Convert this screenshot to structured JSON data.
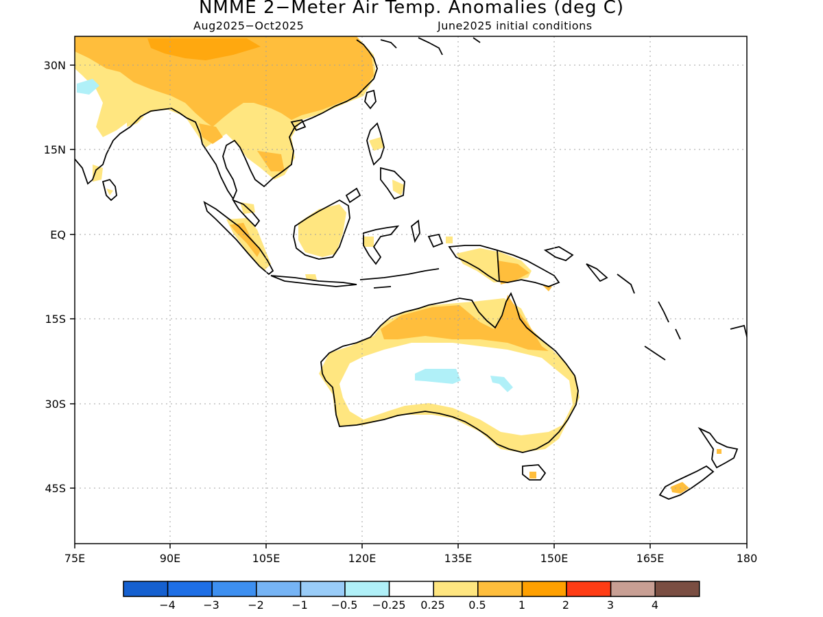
{
  "header": {
    "title": "NMME 2−Meter Air Temp. Anomalies (deg C)",
    "period": "Aug2025−Oct2025",
    "initial_conditions": "June2025 initial conditions"
  },
  "map": {
    "lon_range": [
      75,
      180
    ],
    "lat_range": [
      -52,
      34
    ],
    "lon_ticks": [
      {
        "value": 75,
        "label": "75E"
      },
      {
        "value": 90,
        "label": "90E"
      },
      {
        "value": 105,
        "label": "105E"
      },
      {
        "value": 120,
        "label": "120E"
      },
      {
        "value": 135,
        "label": "135E"
      },
      {
        "value": 150,
        "label": "150E"
      },
      {
        "value": 165,
        "label": "165E"
      },
      {
        "value": 180,
        "label": "180"
      }
    ],
    "lat_ticks": [
      {
        "value": 30,
        "label": "30N"
      },
      {
        "value": 15,
        "label": "15N"
      },
      {
        "value": 0,
        "label": "EQ"
      },
      {
        "value": -15,
        "label": "15S"
      },
      {
        "value": -30,
        "label": "30S"
      },
      {
        "value": -45,
        "label": "45S"
      }
    ],
    "grid": "dotted",
    "ocean_color": "#ffffff",
    "coastline_color": "#000000"
  },
  "legend": {
    "colors": [
      "#1560d0",
      "#1e6fe6",
      "#3d8ff0",
      "#76b4f5",
      "#99ccf8",
      "#b0f0f8",
      "#ffffff",
      "#ffe680",
      "#ffbe3c",
      "#ffa000",
      "#ff3c14",
      "#c89f94",
      "#7a4e42"
    ],
    "labels": [
      "−4",
      "−3",
      "−2",
      "−1",
      "−0.5",
      "−0.25",
      "0.25",
      "0.5",
      "1",
      "2",
      "3",
      "4"
    ]
  },
  "anomaly_colors": {
    "light_orange": "#ffe680",
    "orange": "#ffbe3c",
    "dark_orange": "#ffa000",
    "light_blue": "#b0f0f8"
  }
}
